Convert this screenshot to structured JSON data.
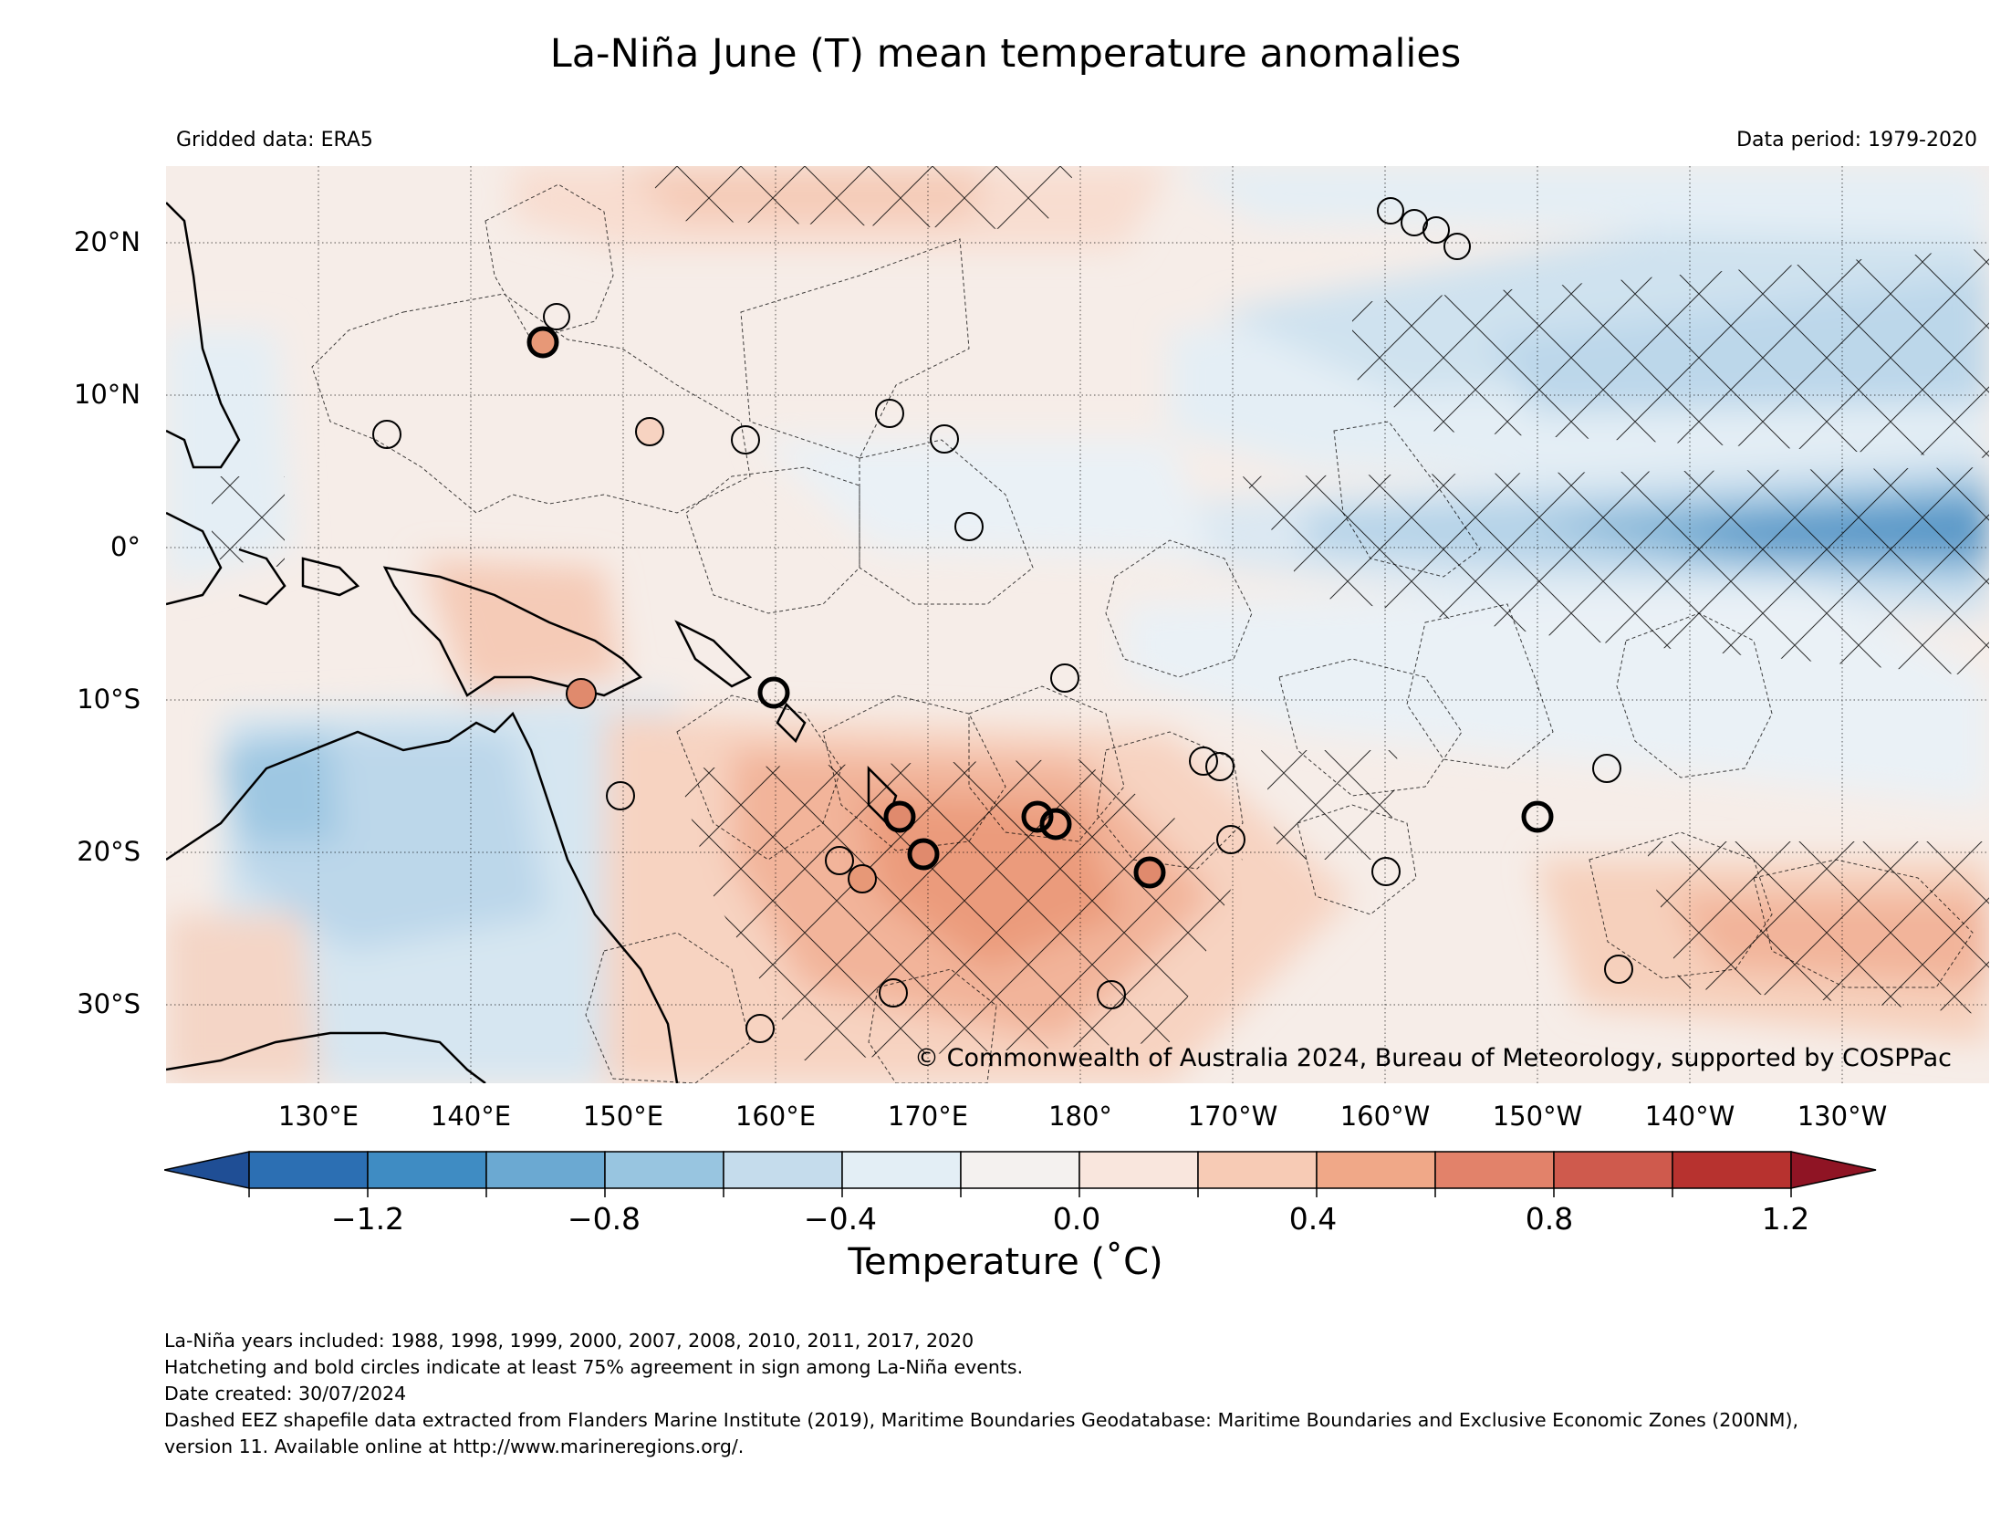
{
  "title": "La-Niña June (T) mean temperature anomalies",
  "subtitle_left": "Gridded data: ERA5",
  "subtitle_right": "Data period: 1979-2020",
  "lat_labels": [
    "20°N",
    "10°N",
    "0°",
    "10°S",
    "20°S",
    "30°S"
  ],
  "lon_labels": [
    "130°E",
    "140°E",
    "150°E",
    "160°E",
    "170°E",
    "180°",
    "170°W",
    "160°W",
    "150°W",
    "140°W",
    "130°W"
  ],
  "credit": "© Commonwealth of Australia 2024, Bureau of Meteorology, supported by COSPPac",
  "colorbar": {
    "ticks": [
      "−1.2",
      "−0.8",
      "−0.4",
      "0.0",
      "0.4",
      "0.8",
      "1.2"
    ],
    "label": "Temperature (˚C)",
    "colors": [
      "#1f4e95",
      "#2c6fb3",
      "#3f8cc3",
      "#6ba9d2",
      "#98c5e0",
      "#c5dcec",
      "#e3eef5",
      "#f4f1ef",
      "#f9e6dd",
      "#f7cbb5",
      "#f0a888",
      "#e2826a",
      "#cf5a4d",
      "#b7322f",
      "#8f1424"
    ]
  },
  "notes": [
    "La-Niña years included: 1988, 1998, 1999, 2000, 2007, 2008, 2010, 2011, 2017, 2020",
    "Hatcheting and bold circles indicate at least 75% agreement in sign among La-Niña events.",
    "Date created: 30/07/2024",
    "Dashed EEZ shapefile data extracted from Flanders Marine Institute (2019), Maritime Boundaries Geodatabase: Maritime Boundaries and Exclusive Economic Zones (200NM),",
    "version 11. Available online at http://www.marineregions.org/."
  ]
}
